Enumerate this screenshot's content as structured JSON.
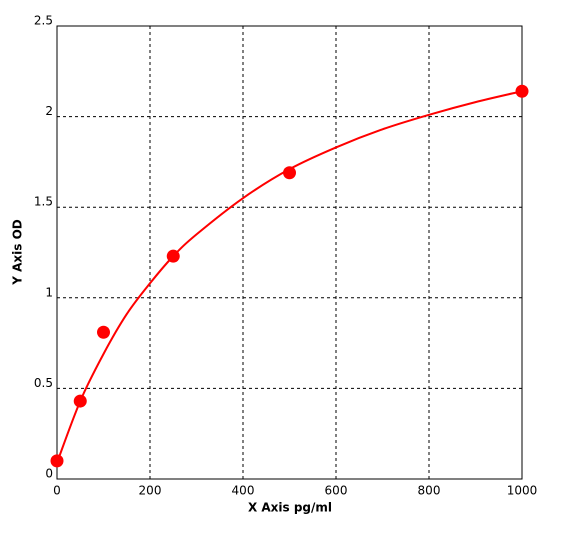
{
  "chart_data": {
    "type": "scatter",
    "xlabel": "X Axis pg/ml",
    "ylabel": "Y Axis OD",
    "xlim": [
      0,
      1000
    ],
    "xticks": [
      0,
      200,
      400,
      600,
      800,
      1000
    ],
    "ylim": [
      0,
      2.5
    ],
    "yticks": [
      0,
      0.5,
      1,
      1.5,
      2,
      2.5
    ],
    "grid": true,
    "color": "#ff0000",
    "points": {
      "x": [
        0,
        50,
        100,
        250,
        500,
        1000
      ],
      "y": [
        0.1,
        0.43,
        0.81,
        1.23,
        1.69,
        2.14
      ]
    },
    "curve": {
      "x": [
        0,
        50,
        100,
        150,
        200,
        250,
        300,
        400,
        500,
        600,
        700,
        800,
        900,
        1000
      ],
      "y": [
        0.09,
        0.43,
        0.69,
        0.91,
        1.08,
        1.23,
        1.35,
        1.55,
        1.71,
        1.83,
        1.93,
        2.01,
        2.08,
        2.14
      ]
    }
  }
}
